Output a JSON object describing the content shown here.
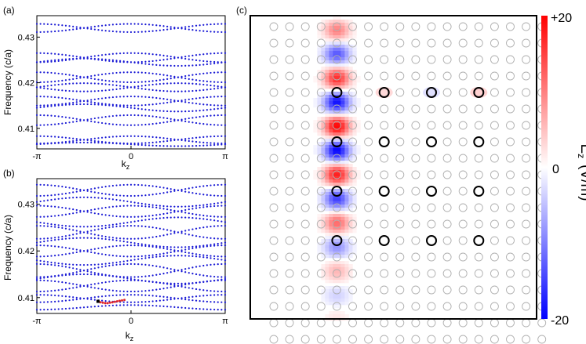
{
  "chart_data": [
    {
      "panel_label": "(a)",
      "type": "scatter",
      "title": "",
      "xlabel": "k",
      "xlabel_sub": "z",
      "ylabel": "Frequency (c/a)",
      "x_ticks": [
        "-π",
        "0",
        "π"
      ],
      "y_ticks": [
        "0.41",
        "0.42",
        "0.43"
      ],
      "y_tick_values": [
        0.41,
        0.42,
        0.43
      ],
      "xlim": [
        -3.14159,
        3.14159
      ],
      "ylim": [
        0.4055,
        0.4347
      ],
      "grid": false,
      "marker_color": "#1f1fd6",
      "band_description": "folded supercell bands (periodic cosine bands)",
      "bands": [
        {
          "center": 0.432,
          "amplitude": 0.0009,
          "phase": 0
        },
        {
          "center": 0.432,
          "amplitude": 0.0009,
          "phase": 3.14159
        },
        {
          "center": 0.4255,
          "amplitude": 0.001,
          "phase": 0
        },
        {
          "center": 0.4255,
          "amplitude": 0.001,
          "phase": 3.14159
        },
        {
          "center": 0.4245,
          "amplitude": 0.0008,
          "phase": 1.5708
        },
        {
          "center": 0.4212,
          "amplitude": 0.0011,
          "phase": 0
        },
        {
          "center": 0.4212,
          "amplitude": 0.0011,
          "phase": 3.14159
        },
        {
          "center": 0.419,
          "amplitude": 0.0009,
          "phase": 1.5708
        },
        {
          "center": 0.419,
          "amplitude": 0.0009,
          "phase": -1.5708
        },
        {
          "center": 0.416,
          "amplitude": 0.001,
          "phase": 0
        },
        {
          "center": 0.416,
          "amplitude": 0.001,
          "phase": 3.14159
        },
        {
          "center": 0.4145,
          "amplitude": 0.0008,
          "phase": 1.5708
        },
        {
          "center": 0.4118,
          "amplitude": 0.0011,
          "phase": 0
        },
        {
          "center": 0.4118,
          "amplitude": 0.0011,
          "phase": 3.14159
        },
        {
          "center": 0.4075,
          "amplitude": 0.0008,
          "phase": 0
        },
        {
          "center": 0.4075,
          "amplitude": 0.0008,
          "phase": 3.14159
        },
        {
          "center": 0.4065,
          "amplitude": 0.0004,
          "phase": 1.5708
        }
      ]
    },
    {
      "panel_label": "(b)",
      "type": "scatter",
      "title": "",
      "xlabel": "k",
      "xlabel_sub": "z",
      "ylabel": "Frequency (c/a)",
      "x_ticks": [
        "-π",
        "0",
        "π"
      ],
      "y_ticks": [
        "0.41",
        "0.42",
        "0.43"
      ],
      "y_tick_values": [
        0.41,
        0.42,
        0.43
      ],
      "xlim": [
        -3.14159,
        3.14159
      ],
      "ylim": [
        0.4066,
        0.4355
      ],
      "grid": false,
      "marker_color": "#1f1fd6",
      "highlight_color": "#e0262a",
      "bands": [
        {
          "center": 0.433,
          "amplitude": 0.0012,
          "phase": 0
        },
        {
          "center": 0.433,
          "amplitude": 0.0012,
          "phase": 3.14159
        },
        {
          "center": 0.4305,
          "amplitude": 0.001,
          "phase": 1.5708
        },
        {
          "center": 0.4285,
          "amplitude": 0.0012,
          "phase": 0
        },
        {
          "center": 0.4285,
          "amplitude": 0.0012,
          "phase": 3.14159
        },
        {
          "center": 0.4262,
          "amplitude": 0.001,
          "phase": -1.5708
        },
        {
          "center": 0.424,
          "amplitude": 0.0014,
          "phase": 0
        },
        {
          "center": 0.424,
          "amplitude": 0.0014,
          "phase": 3.14159
        },
        {
          "center": 0.4218,
          "amplitude": 0.001,
          "phase": 1.5708
        },
        {
          "center": 0.42,
          "amplitude": 0.0012,
          "phase": 0
        },
        {
          "center": 0.42,
          "amplitude": 0.0012,
          "phase": 3.14159
        },
        {
          "center": 0.418,
          "amplitude": 0.001,
          "phase": -1.5708
        },
        {
          "center": 0.4158,
          "amplitude": 0.0014,
          "phase": 0
        },
        {
          "center": 0.4158,
          "amplitude": 0.0014,
          "phase": 3.14159
        },
        {
          "center": 0.414,
          "amplitude": 0.001,
          "phase": 1.5708
        },
        {
          "center": 0.4125,
          "amplitude": 0.0012,
          "phase": 0
        },
        {
          "center": 0.4125,
          "amplitude": 0.0012,
          "phase": 3.14159
        },
        {
          "center": 0.4098,
          "amplitude": 0.0008,
          "phase": 0
        },
        {
          "center": 0.4098,
          "amplitude": 0.0008,
          "phase": 3.14159
        },
        {
          "center": 0.4079,
          "amplitude": 0.0005,
          "phase": 0
        }
      ],
      "highlight": {
        "description": "highlighted defect-band segment near kz ≈ -0.2π",
        "x": [
          -1.02,
          -0.94,
          -0.86,
          -0.78,
          -0.7,
          -0.62,
          -0.54,
          -0.46,
          -0.38,
          -0.3,
          -0.22
        ],
        "y": [
          0.409,
          0.4089,
          0.4088,
          0.4088,
          0.4089,
          0.409,
          0.4091,
          0.4092,
          0.4093,
          0.4094,
          0.4095
        ],
        "marker_x": -1.1,
        "marker_y": 0.4092
      }
    },
    {
      "panel_label": "(c)",
      "type": "heatmap",
      "title": "",
      "colorbar": {
        "label": "E",
        "label_sub": "z",
        "label_unit": "(V/m)",
        "ticks": [
          "+20",
          "0",
          "-20"
        ],
        "range": [
          -20,
          20
        ],
        "colors": [
          "#0000ff",
          "#ffffff",
          "#ff0000"
        ]
      },
      "lattice": {
        "columns": 18,
        "rows": 20
      },
      "highlighted_rods": {
        "columns": [
          4,
          7,
          10,
          13
        ],
        "rows": [
          4,
          7,
          10,
          13
        ]
      },
      "field_description": "Ez mode localized along column 4, alternating sign along z, decaying to the right"
    }
  ]
}
